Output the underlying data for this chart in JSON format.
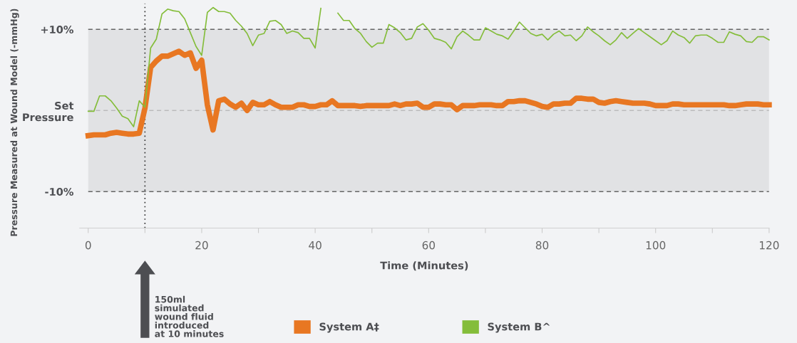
{
  "chart_data": {
    "type": "line",
    "xlabel": "Time (Minutes)",
    "ylabel": "Pressure Measured at Wound Model (-mmHg)",
    "x": [
      0,
      1,
      2,
      3,
      4,
      5,
      6,
      7,
      8,
      9,
      10,
      11,
      12,
      13,
      14,
      15,
      16,
      17,
      18,
      19,
      20,
      21,
      22,
      23,
      24,
      25,
      26,
      27,
      28,
      29,
      30,
      31,
      32,
      33,
      34,
      35,
      36,
      37,
      38,
      39,
      40,
      41,
      42,
      43,
      44,
      45,
      46,
      47,
      48,
      49,
      50,
      51,
      52,
      53,
      54,
      55,
      56,
      57,
      58,
      59,
      60,
      61,
      62,
      63,
      64,
      65,
      66,
      67,
      68,
      69,
      70,
      71,
      72,
      73,
      74,
      75,
      76,
      77,
      78,
      79,
      80,
      81,
      82,
      83,
      84,
      85,
      86,
      87,
      88,
      89,
      90,
      91,
      92,
      93,
      94,
      95,
      96,
      97,
      98,
      99,
      100,
      101,
      102,
      103,
      104,
      105,
      106,
      107,
      108,
      109,
      110,
      111,
      112,
      113,
      114,
      115,
      116,
      117,
      118,
      119,
      120
    ],
    "series": [
      {
        "name": "System A‡",
        "color": "#e87722",
        "values": [
          -3.1,
          -3.0,
          -3.0,
          -3.0,
          -2.8,
          -2.7,
          -2.8,
          -2.9,
          -2.9,
          -2.8,
          0.3,
          5.3,
          6.1,
          6.7,
          6.7,
          7.0,
          7.3,
          6.8,
          7.1,
          5.2,
          6.2,
          0.7,
          -2.4,
          1.2,
          1.4,
          0.8,
          0.4,
          0.9,
          0.0,
          1.0,
          0.7,
          0.7,
          1.1,
          0.7,
          0.4,
          0.4,
          0.4,
          0.7,
          0.7,
          0.5,
          0.5,
          0.7,
          0.7,
          1.2,
          0.6,
          0.6,
          0.6,
          0.6,
          0.5,
          0.6,
          0.6,
          0.6,
          0.6,
          0.6,
          0.8,
          0.6,
          0.8,
          0.8,
          0.9,
          0.4,
          0.4,
          0.8,
          0.8,
          0.7,
          0.7,
          0.1,
          0.6,
          0.6,
          0.6,
          0.7,
          0.7,
          0.7,
          0.6,
          0.6,
          1.1,
          1.1,
          1.2,
          1.2,
          1.0,
          0.8,
          0.5,
          0.4,
          0.8,
          0.8,
          0.9,
          0.9,
          1.5,
          1.5,
          1.4,
          1.4,
          1.0,
          0.9,
          1.1,
          1.2,
          1.1,
          1.0,
          0.9,
          0.9,
          0.9,
          0.8,
          0.6,
          0.6,
          0.6,
          0.8,
          0.8,
          0.7,
          0.7,
          0.7,
          0.7,
          0.7,
          0.7,
          0.7,
          0.7,
          0.6,
          0.6,
          0.7,
          0.8,
          0.8,
          0.8,
          0.7,
          0.7
        ]
      },
      {
        "name": "System B^",
        "color": "#84bd3a",
        "values": [
          -0.1,
          -0.1,
          1.8,
          1.8,
          1.2,
          0.3,
          -0.7,
          -1.0,
          -2.0,
          1.2,
          0.4,
          7.7,
          8.8,
          11.9,
          12.5,
          12.3,
          12.2,
          11.3,
          9.6,
          7.9,
          6.8,
          12.1,
          12.7,
          12.2,
          12.2,
          12.0,
          11.1,
          10.4,
          9.5,
          8.0,
          9.3,
          9.5,
          11.0,
          11.1,
          10.6,
          9.5,
          9.8,
          9.6,
          8.9,
          8.9,
          7.7,
          12.6,
          null,
          null,
          12.0,
          11.1,
          11.1,
          10.1,
          9.5,
          8.5,
          7.8,
          8.3,
          8.3,
          10.6,
          10.2,
          9.6,
          8.7,
          8.9,
          10.3,
          10.7,
          9.9,
          8.9,
          8.7,
          8.4,
          7.6,
          9.1,
          9.8,
          9.3,
          8.7,
          8.7,
          10.2,
          9.8,
          9.4,
          9.2,
          8.8,
          9.8,
          10.9,
          10.2,
          9.5,
          9.2,
          9.4,
          8.7,
          9.4,
          9.8,
          9.2,
          9.3,
          8.6,
          9.2,
          10.3,
          9.7,
          9.2,
          8.6,
          8.1,
          8.7,
          9.6,
          8.9,
          9.5,
          10.1,
          9.6,
          9.1,
          8.6,
          8.1,
          8.6,
          9.8,
          9.3,
          9.0,
          8.3,
          9.2,
          9.3,
          9.3,
          8.9,
          8.4,
          8.4,
          9.7,
          9.4,
          9.2,
          8.5,
          8.4,
          9.1,
          9.1,
          8.7
        ]
      }
    ],
    "xlim": [
      -1.5,
      120
    ],
    "xticks": [
      0,
      {
        "value": 10,
        "label": null
      },
      20,
      {
        "value": 30,
        "label": null
      },
      40,
      {
        "value": 50,
        "label": null
      },
      60,
      {
        "value": 70,
        "label": null
      },
      80,
      {
        "value": 90,
        "label": null
      },
      100,
      {
        "value": 110,
        "label": null
      },
      120
    ],
    "ylim": [
      -14.5,
      13.2
    ],
    "yticks": [
      {
        "value": 10,
        "label": "+10%"
      },
      {
        "value": 0,
        "label": "Set\nPressure"
      },
      {
        "value": -10,
        "label": "-10%"
      }
    ],
    "ref_lines": [
      {
        "axis": "y",
        "value": 10,
        "color": "#666666",
        "line_style": "dashed"
      },
      {
        "axis": "y",
        "value": 0,
        "color": "#bbbbbb",
        "line_style": "dashed"
      },
      {
        "axis": "y",
        "value": -10,
        "color": "#666666",
        "line_style": "dashed"
      },
      {
        "axis": "x",
        "value": 10,
        "color": "#333333",
        "line_style": "dotted"
      }
    ],
    "annotations": [
      "150ml\nsimulated\nwound fluid\nintroduced\nat 10 minutes"
    ],
    "bands": [
      {
        "axis": "y",
        "from": -10,
        "to": 10,
        "color": "#e1e2e4"
      }
    ],
    "grid": false,
    "legend": "bottom",
    "marker": "none",
    "line_style": "solid"
  }
}
